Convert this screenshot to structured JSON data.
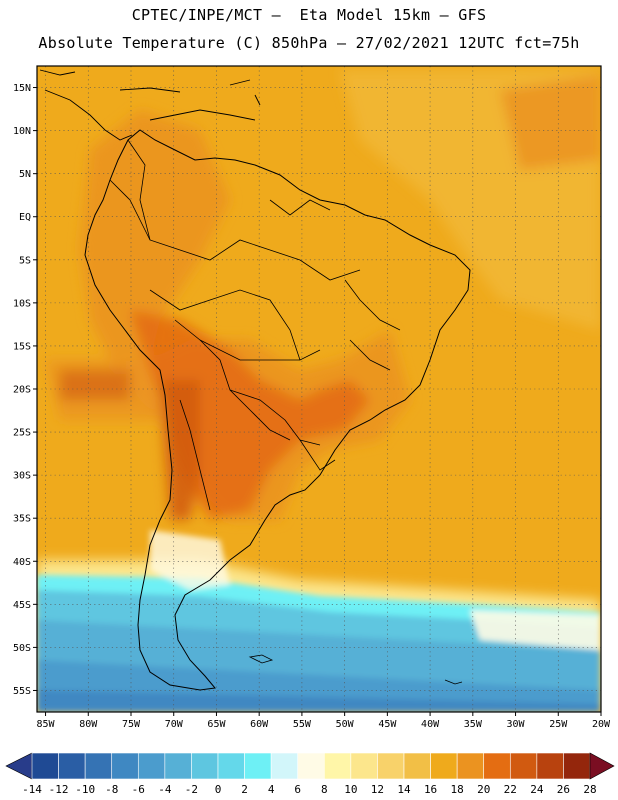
{
  "header": {
    "line1": "CPTEC/INPE/MCT –  Eta Model 15km – GFS",
    "line2": "Absolute Temperature (C) 850hPa – 27/02/2021 12UTC fct=75h"
  },
  "axes": {
    "lat_labels": [
      "15N",
      "10N",
      "5N",
      "EQ",
      "5S",
      "10S",
      "15S",
      "20S",
      "25S",
      "30S",
      "35S",
      "40S",
      "45S",
      "50S",
      "55S"
    ],
    "lat_values": [
      15,
      10,
      5,
      0,
      -5,
      -10,
      -15,
      -20,
      -25,
      -30,
      -35,
      -40,
      -45,
      -50,
      -55
    ],
    "lon_labels": [
      "85W",
      "80W",
      "75W",
      "70W",
      "65W",
      "60W",
      "55W",
      "50W",
      "45W",
      "40W",
      "35W",
      "30W",
      "25W",
      "20W"
    ],
    "lon_values": [
      -85,
      -80,
      -75,
      -70,
      -65,
      -60,
      -55,
      -50,
      -45,
      -40,
      -35,
      -30,
      -25,
      -20
    ],
    "lat_range": [
      -57.5,
      17.5
    ],
    "lon_range": [
      -86,
      -20
    ]
  },
  "colorbar": {
    "ticks": [
      "-14",
      "-12",
      "-10",
      "-8",
      "-6",
      "-4",
      "-2",
      "0",
      "2",
      "4",
      "6",
      "8",
      "10",
      "12",
      "14",
      "16",
      "18",
      "20",
      "22",
      "24",
      "26",
      "28"
    ],
    "colors": [
      "#1f4a94",
      "#2a5ea5",
      "#3573b4",
      "#3f88c2",
      "#4b9ccd",
      "#56b0d6",
      "#5ec6e0",
      "#64d8ea",
      "#6ef0f5",
      "#d2f6fa",
      "#fffbe6",
      "#fff6a8",
      "#fce68c",
      "#f8d26a",
      "#f2bf46",
      "#efaa1c",
      "#eb9320",
      "#e46d12",
      "#d15a10",
      "#b8420e",
      "#94260c"
    ],
    "under_color": "#283c8a",
    "over_color": "#7a0e22"
  }
}
